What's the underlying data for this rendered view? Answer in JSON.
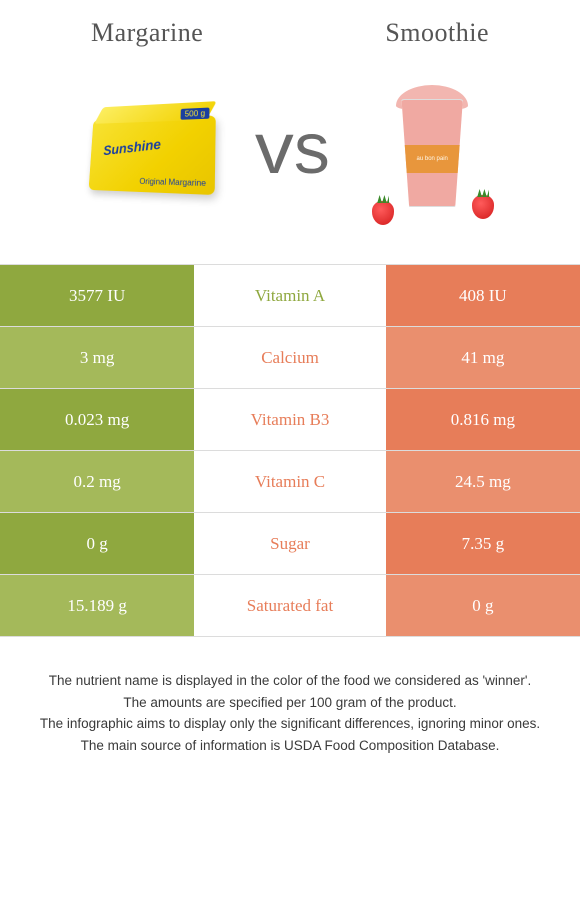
{
  "colors": {
    "left_dark": "#8fa83f",
    "left_light": "#a4b95a",
    "right_dark": "#e77d59",
    "right_light": "#ea8f6e",
    "green_text": "#8fa83f",
    "orange_text": "#e77d59",
    "row_border": "#dcdcdc"
  },
  "header": {
    "left_title": "Margarine",
    "right_title": "Smoothie",
    "vs": "vs"
  },
  "margarine_graphic": {
    "brand": "Sunshine",
    "sub": "Original Margarine",
    "weight": "500 g"
  },
  "smoothie_graphic": {
    "band_text": "au bon pain"
  },
  "rows": [
    {
      "name": "Vitamin A",
      "left": "3577 IU",
      "right": "408 IU",
      "winner": "left"
    },
    {
      "name": "Calcium",
      "left": "3 mg",
      "right": "41 mg",
      "winner": "right"
    },
    {
      "name": "Vitamin B3",
      "left": "0.023 mg",
      "right": "0.816 mg",
      "winner": "right"
    },
    {
      "name": "Vitamin C",
      "left": "0.2 mg",
      "right": "24.5 mg",
      "winner": "right"
    },
    {
      "name": "Sugar",
      "left": "0 g",
      "right": "7.35 g",
      "winner": "right"
    },
    {
      "name": "Saturated fat",
      "left": "15.189 g",
      "right": "0 g",
      "winner": "right"
    }
  ],
  "footer": {
    "l1": "The nutrient name is displayed in the color of the food we considered as 'winner'.",
    "l2": "The amounts are specified per 100 gram of the product.",
    "l3": "The infographic aims to display only the significant differences, ignoring minor ones.",
    "l4": "The main source of information is USDA Food Composition Database."
  }
}
